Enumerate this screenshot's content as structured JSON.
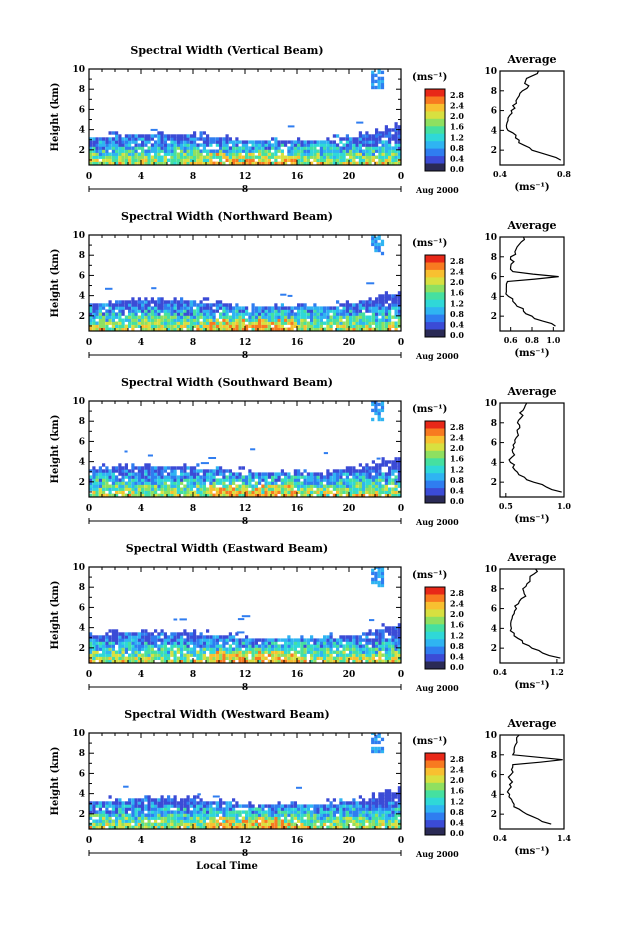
{
  "colors": {
    "colorbar": [
      "#2a2a55",
      "#3b4bd6",
      "#2f7df0",
      "#2fb4f2",
      "#2fd8d8",
      "#45e0a0",
      "#8fe060",
      "#d8e040",
      "#f8c030",
      "#f87a20",
      "#e82818"
    ],
    "background": "#ffffff",
    "speckle": "#ffffff"
  },
  "chart_data": [
    {
      "type": "heatmap",
      "title": "Spectral Width (Vertical Beam)",
      "ylabel": "Height (km)",
      "ylim": [
        0.5,
        10
      ],
      "yticks": [
        "2",
        "4",
        "6",
        "8",
        "10"
      ],
      "xlim": [
        0,
        24
      ],
      "xticks": [
        "0",
        "4",
        "8",
        "12",
        "16",
        "20",
        "0"
      ],
      "date_label": "Aug 2000",
      "date_marker": "8",
      "colorbar_label": "(ms⁻¹)",
      "colorbar_ticks": [
        "2.8",
        "2.4",
        "2.0",
        "1.6",
        "1.2",
        "0.8",
        "0.4",
        "0.0"
      ],
      "profile": {
        "title": "Average",
        "xlabel": "(ms⁻¹)",
        "xlim": [
          0.4,
          0.8
        ],
        "xticks": [
          "0.4",
          "0.8"
        ],
        "heights": [
          1,
          1.5,
          2,
          2.5,
          3,
          3.5,
          4,
          4.5,
          5,
          5.5,
          6,
          6.5,
          7,
          7.5,
          8,
          8.5,
          9,
          9.5,
          10
        ],
        "values": [
          0.78,
          0.7,
          0.6,
          0.55,
          0.52,
          0.5,
          0.45,
          0.44,
          0.45,
          0.46,
          0.47,
          0.48,
          0.5,
          0.52,
          0.54,
          0.58,
          0.56,
          0.6,
          0.64
        ]
      }
    },
    {
      "type": "heatmap",
      "title": "Spectral Width (Northward Beam)",
      "ylabel": "Height (km)",
      "ylim": [
        0.5,
        10
      ],
      "yticks": [
        "2",
        "4",
        "6",
        "8",
        "10"
      ],
      "xlim": [
        0,
        24
      ],
      "xticks": [
        "0",
        "4",
        "8",
        "12",
        "16",
        "20",
        "0"
      ],
      "date_label": "Aug 2000",
      "date_marker": "8",
      "colorbar_label": "(ms⁻¹)",
      "colorbar_ticks": [
        "2.8",
        "2.4",
        "2.0",
        "1.6",
        "1.2",
        "0.8",
        "0.4",
        "0.0"
      ],
      "profile": {
        "title": "Average",
        "xlabel": "(ms⁻¹)",
        "xlim": [
          0.5,
          1.1
        ],
        "xticks": [
          "0.6",
          "0.8",
          "1.0"
        ],
        "heights": [
          1,
          1.5,
          2,
          2.5,
          3,
          3.5,
          4,
          4.5,
          5,
          5.5,
          6,
          6.5,
          7,
          7.5,
          8,
          8.5,
          9,
          9.5,
          10
        ],
        "values": [
          1.02,
          0.9,
          0.8,
          0.72,
          0.66,
          0.62,
          0.58,
          0.56,
          0.56,
          0.57,
          1.05,
          0.62,
          0.6,
          0.63,
          0.6,
          0.64,
          0.66,
          0.7,
          0.72
        ]
      }
    },
    {
      "type": "heatmap",
      "title": "Spectral Width (Southward Beam)",
      "ylabel": "Height (km)",
      "ylim": [
        0.5,
        10
      ],
      "yticks": [
        "2",
        "4",
        "6",
        "8",
        "10"
      ],
      "xlim": [
        0,
        24
      ],
      "xticks": [
        "0",
        "4",
        "8",
        "12",
        "16",
        "20",
        "0"
      ],
      "date_label": "Aug 2000",
      "date_marker": "8",
      "colorbar_label": "(ms⁻¹)",
      "colorbar_ticks": [
        "2.8",
        "2.4",
        "2.0",
        "1.6",
        "1.2",
        "0.8",
        "0.4",
        "0.0"
      ],
      "profile": {
        "title": "Average",
        "xlabel": "(ms⁻¹)",
        "xlim": [
          0.45,
          1.0
        ],
        "xticks": [
          "0.5",
          "1.0"
        ],
        "heights": [
          1,
          1.5,
          2,
          2.5,
          3,
          3.5,
          4,
          4.5,
          5,
          5.5,
          6,
          6.5,
          7,
          7.5,
          8,
          8.5,
          9,
          9.5,
          10
        ],
        "values": [
          0.98,
          0.85,
          0.74,
          0.66,
          0.6,
          0.56,
          0.54,
          0.55,
          0.56,
          0.57,
          0.58,
          0.59,
          0.6,
          0.62,
          0.6,
          0.63,
          0.62,
          0.66,
          0.68
        ]
      }
    },
    {
      "type": "heatmap",
      "title": "Spectral Width (Eastward Beam)",
      "ylabel": "Height (km)",
      "ylim": [
        0.5,
        10
      ],
      "yticks": [
        "2",
        "4",
        "6",
        "8",
        "10"
      ],
      "xlim": [
        0,
        24
      ],
      "xticks": [
        "0",
        "4",
        "8",
        "12",
        "16",
        "20",
        "0"
      ],
      "date_label": "Aug 2000",
      "date_marker": "8",
      "colorbar_label": "(ms⁻¹)",
      "colorbar_ticks": [
        "2.8",
        "2.4",
        "2.0",
        "1.6",
        "1.2",
        "0.8",
        "0.4",
        "0.0"
      ],
      "profile": {
        "title": "Average",
        "xlabel": "(ms⁻¹)",
        "xlim": [
          0.4,
          1.3
        ],
        "xticks": [
          "0.4",
          "1.2"
        ],
        "heights": [
          1,
          1.5,
          2,
          2.5,
          3,
          3.5,
          4,
          4.5,
          5,
          5.5,
          6,
          6.5,
          7,
          7.5,
          8,
          8.5,
          9,
          9.5,
          10
        ],
        "values": [
          1.25,
          1.0,
          0.85,
          0.72,
          0.65,
          0.6,
          0.56,
          0.55,
          0.57,
          0.6,
          0.63,
          0.66,
          0.7,
          0.74,
          0.72,
          0.78,
          0.82,
          0.88,
          0.9
        ]
      }
    },
    {
      "type": "heatmap",
      "title": "Spectral Width (Westward Beam)",
      "ylabel": "Height (km)",
      "ylim": [
        0.5,
        10
      ],
      "yticks": [
        "2",
        "4",
        "6",
        "8",
        "10"
      ],
      "xlim": [
        0,
        24
      ],
      "xticks": [
        "0",
        "4",
        "8",
        "12",
        "16",
        "20",
        "0"
      ],
      "date_label": "Aug 2000",
      "date_marker": "8",
      "xlabel": "Local Time",
      "colorbar_label": "(ms⁻¹)",
      "colorbar_ticks": [
        "2.8",
        "2.4",
        "2.0",
        "1.6",
        "1.2",
        "0.8",
        "0.4",
        "0.0"
      ],
      "profile": {
        "title": "Average",
        "xlabel": "(ms⁻¹)",
        "xlim": [
          0.4,
          1.4
        ],
        "xticks": [
          "0.4",
          "1.4"
        ],
        "heights": [
          1,
          1.5,
          2,
          2.5,
          3,
          3.5,
          4,
          4.5,
          5,
          5.5,
          6,
          6.5,
          7,
          7.5,
          8,
          8.5,
          9,
          9.5,
          10
        ],
        "values": [
          1.2,
          1.0,
          0.82,
          0.7,
          0.62,
          0.58,
          0.55,
          0.54,
          0.55,
          0.56,
          0.57,
          0.58,
          0.6,
          1.38,
          0.6,
          0.62,
          0.64,
          0.66,
          0.7
        ]
      }
    }
  ]
}
